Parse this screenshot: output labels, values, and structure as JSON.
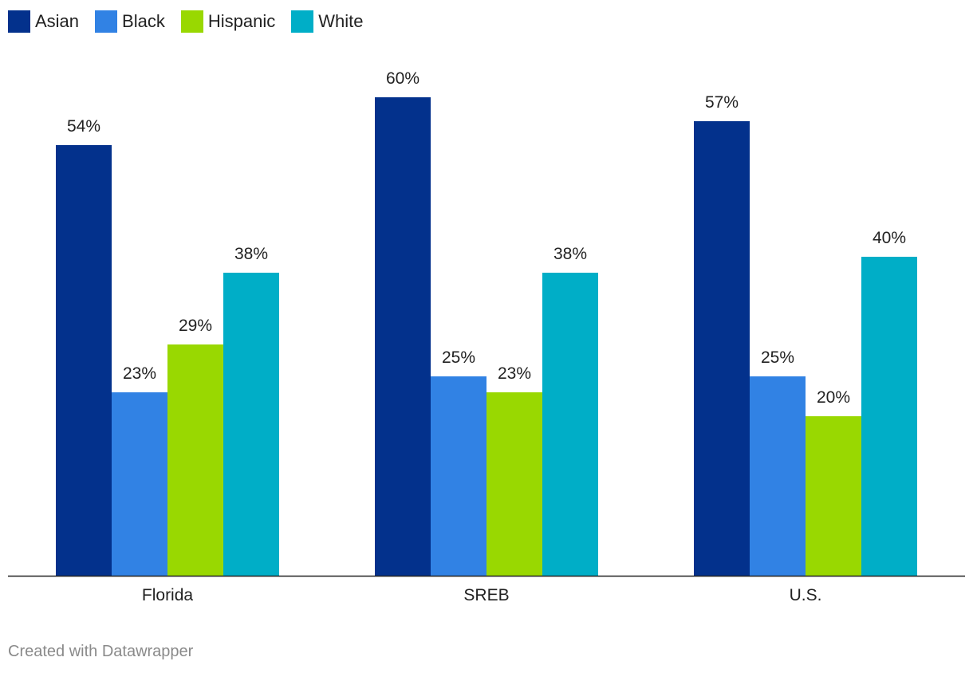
{
  "chart_data": {
    "type": "bar",
    "categories": [
      "Florida",
      "SREB",
      "U.S."
    ],
    "series": [
      {
        "name": "Asian",
        "color": "#03318c",
        "values": [
          54,
          60,
          57
        ]
      },
      {
        "name": "Black",
        "color": "#3182e4",
        "values": [
          23,
          25,
          25
        ]
      },
      {
        "name": "Hispanic",
        "color": "#99d801",
        "values": [
          29,
          23,
          20
        ]
      },
      {
        "name": "White",
        "color": "#00aec7",
        "values": [
          38,
          38,
          40
        ]
      }
    ],
    "value_suffix": "%",
    "ylim": [
      0,
      60
    ],
    "grid": false,
    "legend_position": "top-left"
  },
  "footer": {
    "text": "Created with Datawrapper"
  }
}
